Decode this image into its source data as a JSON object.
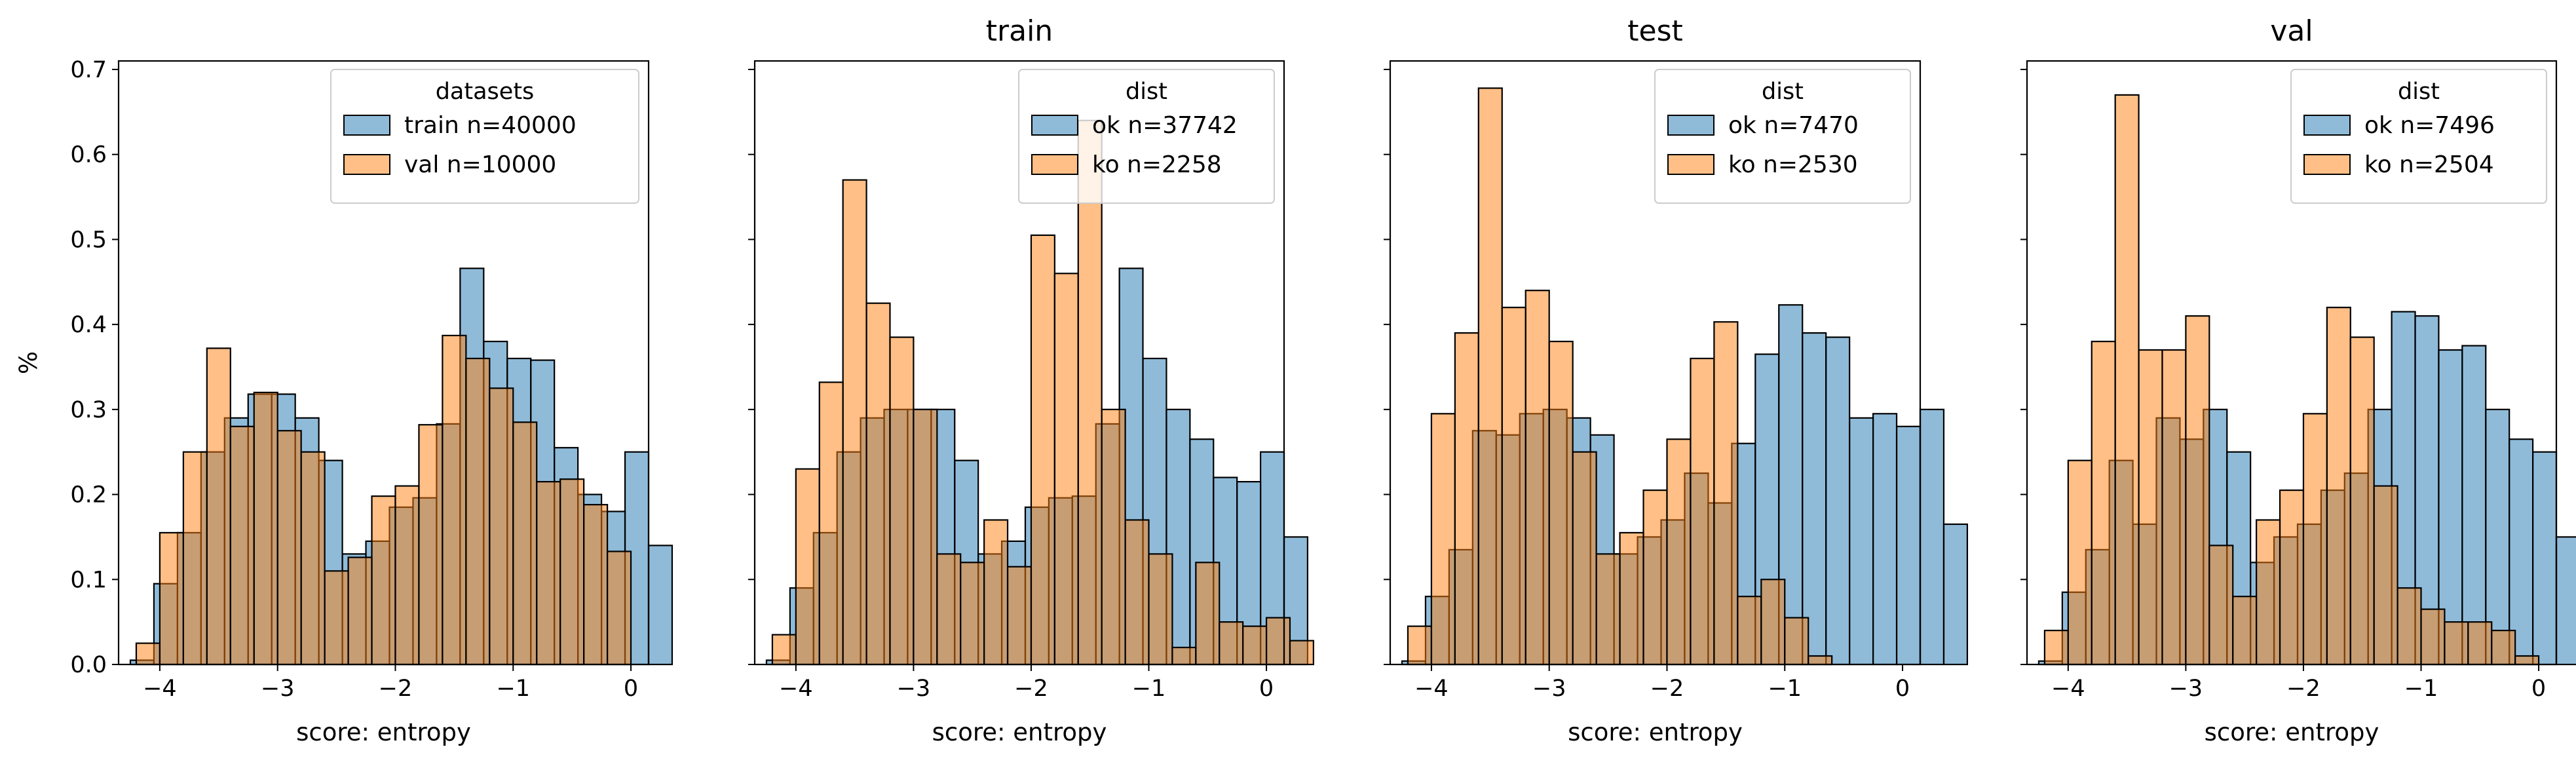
{
  "colors": {
    "blue": "#1f77b4",
    "orange": "#ff7f0e",
    "edge": "#000000",
    "legend_edge": "#cccccc"
  },
  "chart_data": [
    {
      "type": "bar",
      "subtype": "histogram",
      "title": "",
      "xlabel": "score: entropy",
      "ylabel": "%",
      "xlim": [
        -4.35,
        0.15
      ],
      "ylim": [
        0,
        0.71
      ],
      "xticks": [
        -4,
        -3,
        -2,
        -1,
        0
      ],
      "yticks": [
        0.0,
        0.1,
        0.2,
        0.3,
        0.4,
        0.5,
        0.6,
        0.7
      ],
      "grid": false,
      "legend": {
        "title": "datasets",
        "position": "top-right"
      },
      "alpha": 0.5,
      "series": [
        {
          "name": "train n=40000",
          "color": "blue",
          "bin_start": -4.25,
          "bin_width": 0.2,
          "values": [
            0.005,
            0.095,
            0.155,
            0.25,
            0.29,
            0.318,
            0.318,
            0.29,
            0.24,
            0.13,
            0.145,
            0.185,
            0.196,
            0.283,
            0.466,
            0.38,
            0.36,
            0.358,
            0.255,
            0.2,
            0.18,
            0.25,
            0.14
          ]
        },
        {
          "name": "val n=10000",
          "color": "orange",
          "bin_start": -4.2,
          "bin_width": 0.2,
          "values": [
            0.025,
            0.155,
            0.25,
            0.372,
            0.28,
            0.32,
            0.275,
            0.25,
            0.11,
            0.126,
            0.198,
            0.21,
            0.282,
            0.387,
            0.36,
            0.325,
            0.285,
            0.215,
            0.218,
            0.188,
            0.133
          ]
        }
      ]
    },
    {
      "type": "bar",
      "subtype": "histogram",
      "title": "train",
      "xlabel": "score: entropy",
      "ylabel": "",
      "xlim": [
        -4.35,
        0.15
      ],
      "ylim": [
        0,
        0.71
      ],
      "xticks": [
        -4,
        -3,
        -2,
        -1,
        0
      ],
      "yticks": [
        0.0,
        0.1,
        0.2,
        0.3,
        0.4,
        0.5,
        0.6,
        0.7
      ],
      "grid": false,
      "legend": {
        "title": "dist",
        "position": "top-right"
      },
      "alpha": 0.5,
      "series": [
        {
          "name": "ok n=37742",
          "color": "blue",
          "bin_start": -4.25,
          "bin_width": 0.2,
          "values": [
            0.005,
            0.09,
            0.155,
            0.25,
            0.29,
            0.3,
            0.3,
            0.3,
            0.24,
            0.13,
            0.145,
            0.185,
            0.196,
            0.198,
            0.283,
            0.466,
            0.36,
            0.3,
            0.265,
            0.22,
            0.215,
            0.25,
            0.15
          ]
        },
        {
          "name": "ko n=2258",
          "color": "orange",
          "bin_start": -4.2,
          "bin_width": 0.2,
          "values": [
            0.035,
            0.23,
            0.332,
            0.57,
            0.425,
            0.385,
            0.3,
            0.13,
            0.12,
            0.17,
            0.115,
            0.505,
            0.46,
            0.64,
            0.3,
            0.17,
            0.13,
            0.02,
            0.12,
            0.05,
            0.045,
            0.055,
            0.028
          ]
        }
      ]
    },
    {
      "type": "bar",
      "subtype": "histogram",
      "title": "test",
      "xlabel": "score: entropy",
      "ylabel": "",
      "xlim": [
        -4.35,
        0.15
      ],
      "ylim": [
        0,
        0.71
      ],
      "xticks": [
        -4,
        -3,
        -2,
        -1,
        0
      ],
      "yticks": [
        0.0,
        0.1,
        0.2,
        0.3,
        0.4,
        0.5,
        0.6,
        0.7
      ],
      "grid": false,
      "legend": {
        "title": "dist",
        "position": "top-right"
      },
      "alpha": 0.5,
      "series": [
        {
          "name": "ok n=7470",
          "color": "blue",
          "bin_start": -4.25,
          "bin_width": 0.2,
          "values": [
            0.004,
            0.08,
            0.135,
            0.275,
            0.27,
            0.295,
            0.3,
            0.29,
            0.27,
            0.13,
            0.15,
            0.17,
            0.225,
            0.19,
            0.26,
            0.365,
            0.423,
            0.39,
            0.385,
            0.29,
            0.295,
            0.28,
            0.3,
            0.165
          ]
        },
        {
          "name": "ko n=2530",
          "color": "orange",
          "bin_start": -4.2,
          "bin_width": 0.2,
          "values": [
            0.045,
            0.295,
            0.39,
            0.678,
            0.42,
            0.44,
            0.38,
            0.25,
            0.13,
            0.155,
            0.205,
            0.265,
            0.36,
            0.403,
            0.08,
            0.1,
            0.055,
            0.01
          ]
        }
      ]
    },
    {
      "type": "bar",
      "subtype": "histogram",
      "title": "val",
      "xlabel": "score: entropy",
      "ylabel": "",
      "xlim": [
        -4.35,
        0.15
      ],
      "ylim": [
        0,
        0.71
      ],
      "xticks": [
        -4,
        -3,
        -2,
        -1,
        0
      ],
      "yticks": [
        0.0,
        0.1,
        0.2,
        0.3,
        0.4,
        0.5,
        0.6,
        0.7
      ],
      "grid": false,
      "legend": {
        "title": "dist",
        "position": "top-right"
      },
      "alpha": 0.5,
      "series": [
        {
          "name": "ok n=7496",
          "color": "blue",
          "bin_start": -4.25,
          "bin_width": 0.2,
          "values": [
            0.004,
            0.085,
            0.135,
            0.24,
            0.165,
            0.29,
            0.265,
            0.3,
            0.25,
            0.12,
            0.15,
            0.165,
            0.205,
            0.225,
            0.3,
            0.415,
            0.41,
            0.37,
            0.375,
            0.3,
            0.265,
            0.25,
            0.15
          ]
        },
        {
          "name": "ko n=2504",
          "color": "orange",
          "bin_start": -4.2,
          "bin_width": 0.2,
          "values": [
            0.04,
            0.24,
            0.38,
            0.67,
            0.37,
            0.37,
            0.41,
            0.14,
            0.08,
            0.17,
            0.205,
            0.295,
            0.42,
            0.385,
            0.21,
            0.09,
            0.065,
            0.05,
            0.05,
            0.04,
            0.01
          ]
        }
      ]
    }
  ]
}
